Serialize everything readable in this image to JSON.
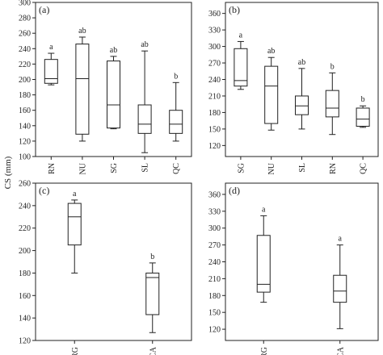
{
  "shared_ylabel": "CS (mm)",
  "chart_data": [
    {
      "type": "boxplot",
      "panel": "(a)",
      "categories": [
        "RN",
        "NU",
        "SG",
        "SL",
        "QC"
      ],
      "ylim": [
        100,
        300
      ],
      "yticks": [
        100,
        120,
        140,
        160,
        180,
        200,
        220,
        240,
        260,
        280,
        300
      ],
      "grid": false,
      "boxes": [
        {
          "min": 193,
          "q1": 195,
          "median": 201,
          "q3": 226,
          "max": 234,
          "sig": "a"
        },
        {
          "min": 120,
          "q1": 129,
          "median": 201,
          "q3": 246,
          "max": 255,
          "sig": "ab"
        },
        {
          "min": 136,
          "q1": 137,
          "median": 167,
          "q3": 224,
          "max": 230,
          "sig": "ab"
        },
        {
          "min": 105,
          "q1": 130,
          "median": 142,
          "q3": 167,
          "max": 237,
          "sig": "ab"
        },
        {
          "min": 120,
          "q1": 130,
          "median": 142,
          "q3": 160,
          "max": 196,
          "sig": "b"
        }
      ]
    },
    {
      "type": "boxplot",
      "panel": "(b)",
      "categories": [
        "SG",
        "NU",
        "SL",
        "RN",
        "QC"
      ],
      "ylim": [
        100,
        380
      ],
      "yticks": [
        120,
        150,
        180,
        210,
        240,
        270,
        300,
        330,
        360
      ],
      "grid": false,
      "boxes": [
        {
          "min": 222,
          "q1": 228,
          "median": 238,
          "q3": 296,
          "max": 309,
          "sig": "a"
        },
        {
          "min": 148,
          "q1": 160,
          "median": 228,
          "q3": 264,
          "max": 280,
          "sig": "ab"
        },
        {
          "min": 150,
          "q1": 176,
          "median": 192,
          "q3": 210,
          "max": 260,
          "sig": "ab"
        },
        {
          "min": 140,
          "q1": 172,
          "median": 188,
          "q3": 220,
          "max": 252,
          "sig": "b"
        },
        {
          "min": 153,
          "q1": 155,
          "median": 168,
          "q3": 188,
          "max": 192,
          "sig": "b"
        }
      ]
    },
    {
      "type": "boxplot",
      "panel": "(c)",
      "categories": [
        "RG",
        "CA"
      ],
      "ylim": [
        120,
        260
      ],
      "yticks": [
        120,
        140,
        160,
        180,
        200,
        220,
        240,
        260
      ],
      "grid": false,
      "boxes": [
        {
          "min": 180,
          "q1": 205,
          "median": 230,
          "q3": 242,
          "max": 245,
          "sig": "a"
        },
        {
          "min": 127,
          "q1": 143,
          "median": 176,
          "q3": 180,
          "max": 189,
          "sig": "b"
        }
      ]
    },
    {
      "type": "boxplot",
      "panel": "(d)",
      "categories": [
        "RG",
        "CA"
      ],
      "ylim": [
        100,
        380
      ],
      "yticks": [
        120,
        150,
        180,
        210,
        240,
        270,
        300,
        330,
        360
      ],
      "grid": false,
      "boxes": [
        {
          "min": 168,
          "q1": 186,
          "median": 200,
          "q3": 287,
          "max": 322,
          "sig": "a"
        },
        {
          "min": 121,
          "q1": 168,
          "median": 188,
          "q3": 216,
          "max": 270,
          "sig": "a"
        }
      ]
    }
  ]
}
